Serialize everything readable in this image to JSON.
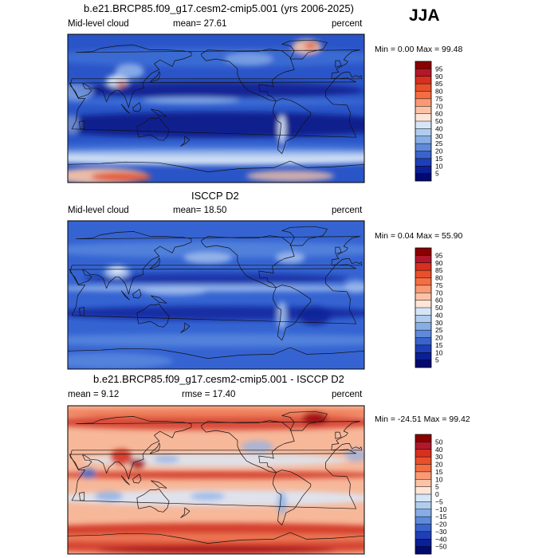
{
  "season": "JJA",
  "panels": [
    {
      "title": "b.e21.BRCP85.f09_g17.cesm2-cmip5.001 (yrs 2006-2025)",
      "left_label": "Mid-level cloud",
      "center_label": "mean=  27.61",
      "units": "percent",
      "minmax": "Min =    0.00 Max =   99.48",
      "colorbar_ticks": [
        "95",
        "90",
        "85",
        "80",
        "75",
        "70",
        "60",
        "50",
        "40",
        "30",
        "25",
        "20",
        "15",
        "10",
        "5"
      ],
      "colorbar_colors": [
        "#8b0000",
        "#b2182b",
        "#d6301e",
        "#e8502c",
        "#f46d43",
        "#f99a74",
        "#fbc3a6",
        "#fde6d8",
        "#d6e6f7",
        "#b0cdee",
        "#87aee4",
        "#5f8ad9",
        "#3a63cc",
        "#1f3fb8",
        "#0b1f96",
        "#000a70"
      ]
    },
    {
      "title": "ISCCP D2",
      "left_label": "Mid-level cloud",
      "center_label": "mean=  18.50",
      "units": "percent",
      "minmax": "Min =   0.04 Max =   55.90",
      "colorbar_ticks": [
        "95",
        "90",
        "85",
        "80",
        "75",
        "70",
        "60",
        "50",
        "40",
        "30",
        "25",
        "20",
        "15",
        "10",
        "5"
      ],
      "colorbar_colors": [
        "#8b0000",
        "#b2182b",
        "#d6301e",
        "#e8502c",
        "#f46d43",
        "#f99a74",
        "#fbc3a6",
        "#fde6d8",
        "#d6e6f7",
        "#b0cdee",
        "#87aee4",
        "#5f8ad9",
        "#3a63cc",
        "#1f3fb8",
        "#0b1f96",
        "#000a70"
      ]
    },
    {
      "title": "b.e21.BRCP85.f09_g17.cesm2-cmip5.001 - ISCCP D2",
      "left_label": "mean =    9.12",
      "center_label": "rmse =   17.40",
      "units": "percent",
      "minmax": "Min = -24.51 Max =   99.42",
      "colorbar_ticks": [
        "50",
        "40",
        "30",
        "20",
        "15",
        "10",
        "5",
        "0",
        "−5",
        "−10",
        "−15",
        "−20",
        "−30",
        "−40",
        "−50"
      ],
      "colorbar_colors": [
        "#8b0000",
        "#b2182b",
        "#d6301e",
        "#e8502c",
        "#f46d43",
        "#f99a74",
        "#fbc3a6",
        "#fde6d8",
        "#d6e6f7",
        "#b0cdee",
        "#87aee4",
        "#5f8ad9",
        "#3a63cc",
        "#1f3fb8",
        "#0b1f96",
        "#000a70"
      ]
    }
  ],
  "map_palettes": {
    "panel1": {
      "base": "#2a55c8",
      "bands": [
        "#0a1a8a",
        "#1c3bb5",
        "#3f6fd6",
        "#8fb3ea",
        "#d8e6f7",
        "#f4c1a6",
        "#e05a3a"
      ]
    },
    "panel2": {
      "base": "#3564d2",
      "bands": [
        "#0c2198",
        "#2346c0",
        "#5585dd",
        "#a6c2ef",
        "#e6eefa"
      ]
    },
    "panel3": {
      "base": "#f7b89a",
      "bands": [
        "#9e0d12",
        "#d33a28",
        "#f07c58",
        "#fbd5c2",
        "#dbe7f6",
        "#8eb2e8",
        "#3e6ad2"
      ]
    }
  },
  "coastline_color": "#111111"
}
